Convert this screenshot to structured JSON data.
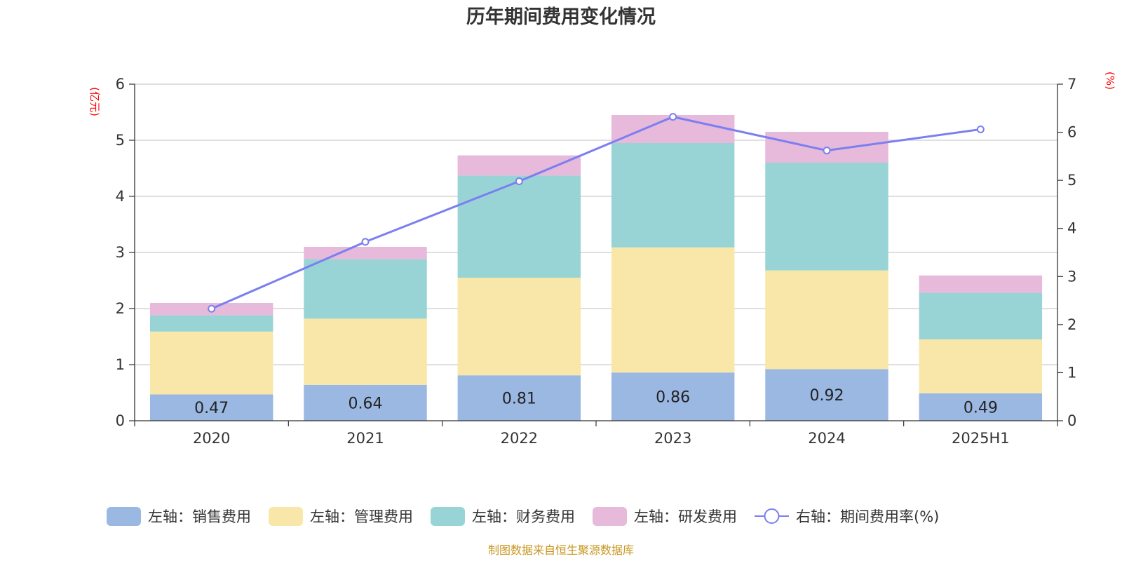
{
  "chart_data": {
    "type": "bar",
    "title": "历年期间费用变化情况",
    "categories": [
      "2020",
      "2021",
      "2022",
      "2023",
      "2024",
      "2025H1"
    ],
    "stacked": true,
    "series": [
      {
        "name": "左轴：销售费用",
        "axis": "left",
        "type": "bar",
        "color": "#9bb8e3",
        "values": [
          0.47,
          0.64,
          0.81,
          0.86,
          0.92,
          0.49
        ],
        "show_labels": true
      },
      {
        "name": "左轴：管理费用",
        "axis": "left",
        "type": "bar",
        "color": "#f8e7a8",
        "values": [
          1.12,
          1.18,
          1.74,
          2.23,
          1.76,
          0.96
        ]
      },
      {
        "name": "左轴：财务费用",
        "axis": "left",
        "type": "bar",
        "color": "#98d4d5",
        "values": [
          0.29,
          1.06,
          1.82,
          1.86,
          1.92,
          0.83
        ]
      },
      {
        "name": "左轴：研发费用",
        "axis": "left",
        "type": "bar",
        "color": "#e7b9da",
        "values": [
          0.22,
          0.22,
          0.36,
          0.5,
          0.55,
          0.31
        ]
      },
      {
        "name": "右轴：期间费用率(%)",
        "axis": "right",
        "type": "line",
        "color": "#7b7ff0",
        "values": [
          2.33,
          3.72,
          4.98,
          6.32,
          5.62,
          6.06
        ]
      }
    ],
    "y_left": {
      "unit": "(亿元)",
      "min": 0,
      "max": 6,
      "ticks": [
        "0",
        "1",
        "2",
        "3",
        "4",
        "5",
        "6"
      ]
    },
    "y_right": {
      "unit": "(%)",
      "min": 0,
      "max": 7,
      "ticks": [
        "0",
        "1",
        "2",
        "3",
        "4",
        "5",
        "6",
        "7"
      ]
    },
    "grid": true,
    "legend_position": "bottom"
  },
  "source_note": "制图数据来自恒生聚源数据库"
}
